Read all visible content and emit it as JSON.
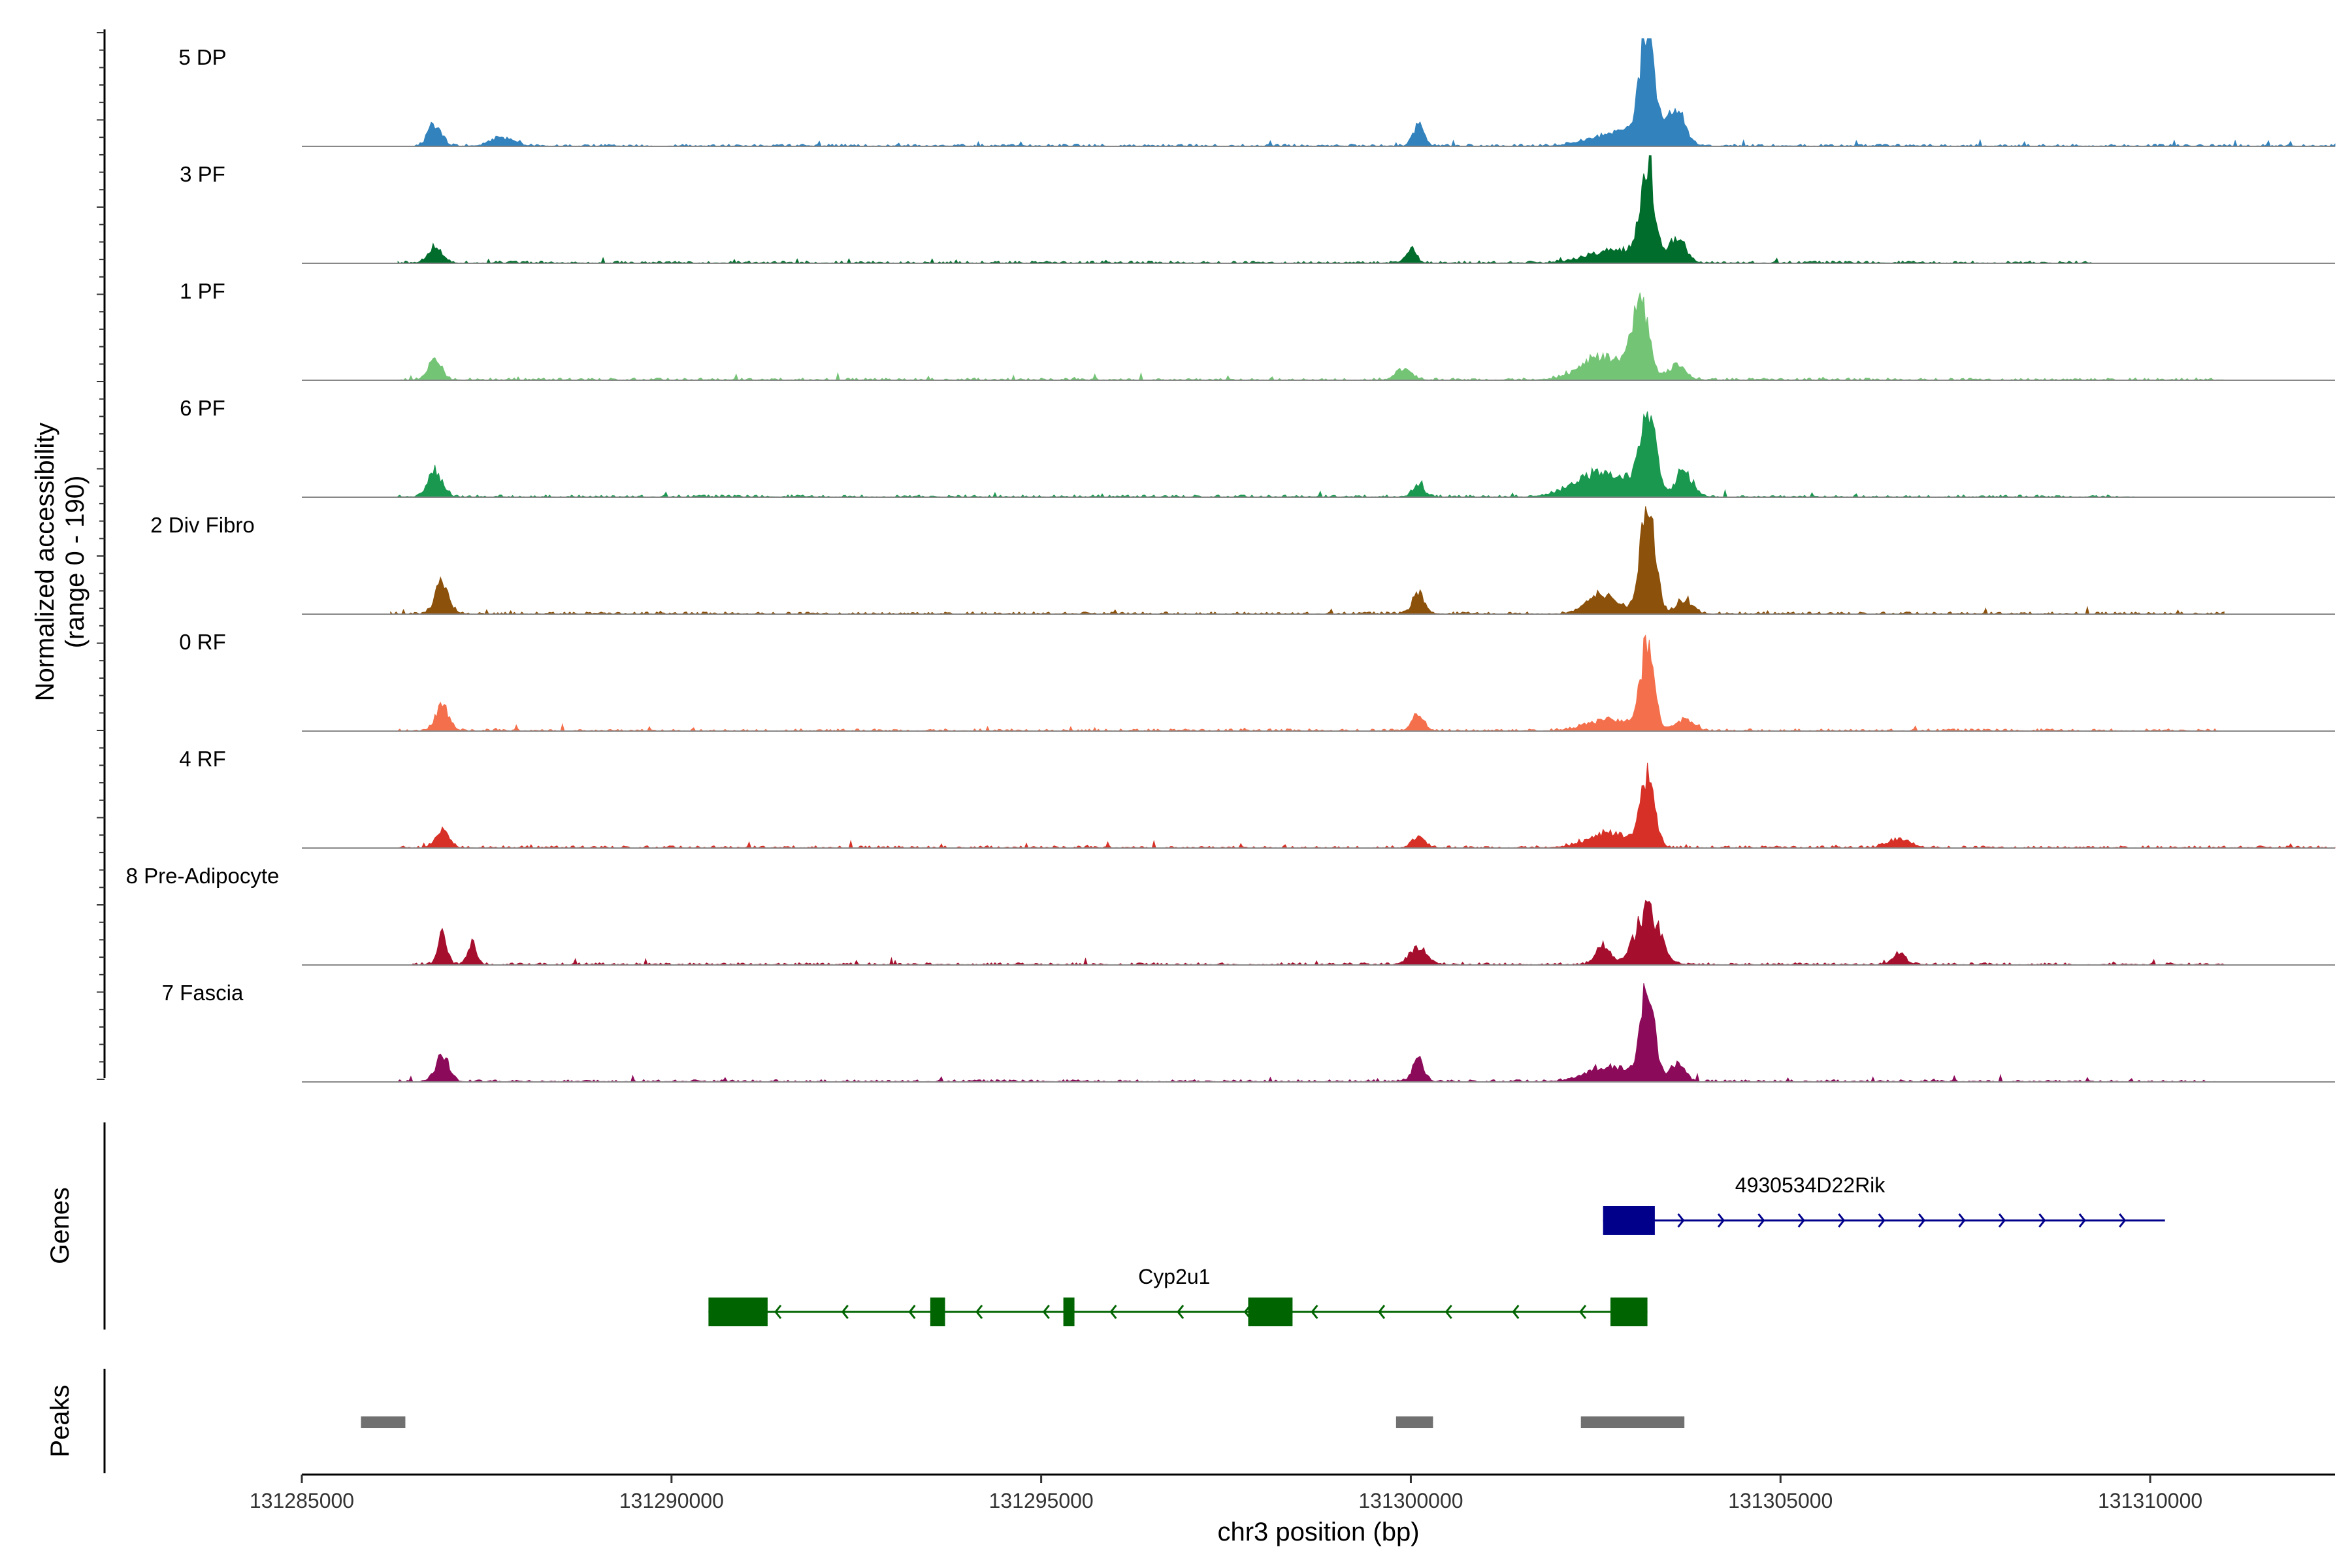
{
  "chart_data": {
    "type": "area",
    "title": "",
    "ylabel_line1": "Normalized accessibility",
    "ylabel_line2": "(range 0 - 190)",
    "xlabel": "chr3 position (bp)",
    "xlim": [
      131285000,
      131312500
    ],
    "ylim": [
      0,
      190
    ],
    "xticks": [
      131285000,
      131290000,
      131295000,
      131300000,
      131305000,
      131310000
    ],
    "xtick_labels": [
      "131285000",
      "131290000",
      "131295000",
      "131300000",
      "131305000",
      "131310000"
    ],
    "genes_label": "Genes",
    "peaks_label": "Peaks",
    "series": [
      {
        "name": "5 DP",
        "color": "#3182bd",
        "track_start": 131286500,
        "track_end": 131312500,
        "peaks": [
          [
            131286800,
            40,
            90
          ],
          [
            131287700,
            15,
            150
          ],
          [
            131300100,
            35,
            70
          ],
          [
            131302800,
            20,
            350
          ],
          [
            131303200,
            25,
            250
          ],
          [
            131303200,
            190,
            90
          ],
          [
            131303600,
            60,
            110
          ]
        ]
      },
      {
        "name": "3 PF",
        "color": "#006d2c",
        "track_start": 131286300,
        "track_end": 131309200,
        "peaks": [
          [
            131286800,
            30,
            90
          ],
          [
            131300000,
            25,
            70
          ],
          [
            131302800,
            25,
            350
          ],
          [
            131303200,
            170,
            90
          ],
          [
            131303600,
            45,
            110
          ]
        ]
      },
      {
        "name": "1 PF",
        "color": "#74c476",
        "track_start": 131286300,
        "track_end": 131311000,
        "peaks": [
          [
            131286800,
            35,
            90
          ],
          [
            131299900,
            20,
            100
          ],
          [
            131302600,
            40,
            300
          ],
          [
            131303100,
            130,
            110
          ],
          [
            131303600,
            25,
            120
          ]
        ]
      },
      {
        "name": "6 PF",
        "color": "#1a9850",
        "track_start": 131286300,
        "track_end": 131309800,
        "peaks": [
          [
            131286800,
            45,
            90
          ],
          [
            131300100,
            20,
            80
          ],
          [
            131302600,
            45,
            350
          ],
          [
            131303200,
            155,
            100
          ],
          [
            131303700,
            45,
            110
          ]
        ]
      },
      {
        "name": "2 Div Fibro",
        "color": "#8c510a",
        "track_start": 131286200,
        "track_end": 131311000,
        "peaks": [
          [
            131286900,
            55,
            90
          ],
          [
            131300100,
            35,
            80
          ],
          [
            131302600,
            35,
            200
          ],
          [
            131303200,
            180,
            100
          ],
          [
            131303700,
            25,
            110
          ]
        ]
      },
      {
        "name": "0 RF",
        "color": "#f4704c",
        "track_start": 131286300,
        "track_end": 131310900,
        "peaks": [
          [
            131286900,
            45,
            90
          ],
          [
            131300100,
            30,
            80
          ],
          [
            131302700,
            20,
            300
          ],
          [
            131303200,
            150,
            90
          ],
          [
            131303700,
            20,
            110
          ]
        ]
      },
      {
        "name": "4 RF",
        "color": "#d73027",
        "track_start": 131286300,
        "track_end": 131312500,
        "peaks": [
          [
            131286900,
            30,
            90
          ],
          [
            131300100,
            20,
            80
          ],
          [
            131302700,
            25,
            300
          ],
          [
            131303200,
            125,
            90
          ],
          [
            131306600,
            15,
            150
          ]
        ]
      },
      {
        "name": "8 Pre-Adipocyte",
        "color": "#a50f2d",
        "track_start": 131286500,
        "track_end": 131311000,
        "peaks": [
          [
            131286900,
            55,
            60
          ],
          [
            131287300,
            40,
            60
          ],
          [
            131300100,
            30,
            120
          ],
          [
            131302600,
            35,
            90
          ],
          [
            131303200,
            95,
            160
          ],
          [
            131306600,
            20,
            80
          ]
        ]
      },
      {
        "name": "7 Fascia",
        "color": "#8c0a5a",
        "track_start": 131286300,
        "track_end": 131310900,
        "peaks": [
          [
            131286900,
            45,
            90
          ],
          [
            131300100,
            35,
            80
          ],
          [
            131302700,
            25,
            300
          ],
          [
            131303200,
            165,
            90
          ],
          [
            131303600,
            30,
            110
          ]
        ]
      }
    ],
    "genes": [
      {
        "name": "4930534D22Rik",
        "color": "#00008b",
        "strand": "+",
        "start": 131302600,
        "end": 131310200,
        "exons": [
          [
            131302600,
            131303300
          ]
        ]
      },
      {
        "name": "Cyp2u1",
        "color": "#006400",
        "strand": "-",
        "start": 131290500,
        "end": 131303200,
        "exons": [
          [
            131290500,
            131291300
          ],
          [
            131293500,
            131293700
          ],
          [
            131295300,
            131295450
          ],
          [
            131297800,
            131298400
          ],
          [
            131302700,
            131303200
          ]
        ]
      }
    ],
    "peaks_regions": [
      [
        131285800,
        131286400
      ],
      [
        131299800,
        131300300
      ],
      [
        131302300,
        131303700
      ]
    ]
  }
}
